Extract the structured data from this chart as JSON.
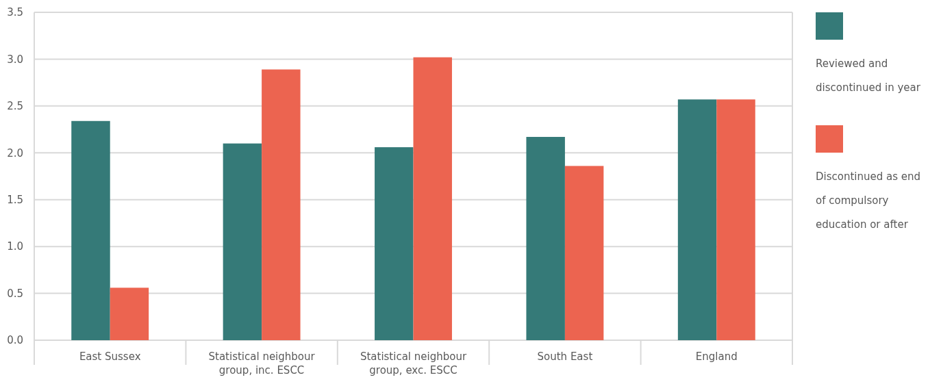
{
  "chart_data": {
    "type": "bar",
    "categories": [
      "East Sussex",
      "Statistical neighbour group, inc. ESCC",
      "Statistical neighbour group, exc. ESCC",
      "South East",
      "England"
    ],
    "series": [
      {
        "name": "Reviewed and discontinued in year",
        "color": "#357a78",
        "values": [
          2.34,
          2.1,
          2.06,
          2.17,
          2.57
        ]
      },
      {
        "name": "Discontinued as end of compulsory education or after",
        "color": "#ec6450",
        "values": [
          0.56,
          2.89,
          3.02,
          1.86,
          2.57
        ]
      }
    ],
    "ylim": [
      0,
      3.5
    ],
    "yticks": [
      {
        "value": 0,
        "label": "0.0"
      },
      {
        "value": 0.5,
        "label": "0.5"
      },
      {
        "value": 1,
        "label": "1.0"
      },
      {
        "value": 1.5,
        "label": "1.5"
      },
      {
        "value": 2,
        "label": "2.0"
      },
      {
        "value": 2.5,
        "label": "2.5"
      },
      {
        "value": 3,
        "label": "3.0"
      },
      {
        "value": 3.5,
        "label": "3.5"
      }
    ],
    "grid": "y",
    "legend": "right"
  }
}
